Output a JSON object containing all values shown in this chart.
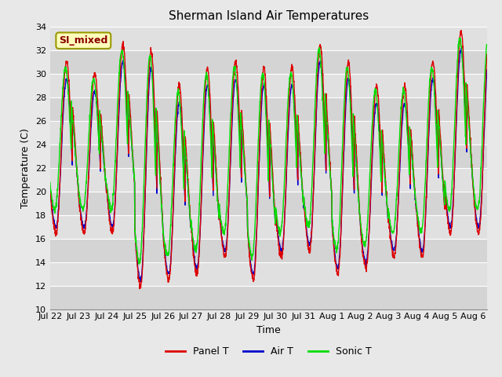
{
  "title": "Sherman Island Air Temperatures",
  "xlabel": "Time",
  "ylabel": "Temperature (C)",
  "ylim": [
    10,
    34
  ],
  "yticks": [
    10,
    12,
    14,
    16,
    18,
    20,
    22,
    24,
    26,
    28,
    30,
    32,
    34
  ],
  "annotation": "SI_mixed",
  "panel_t_color": "#dd0000",
  "air_t_color": "#0000cc",
  "sonic_t_color": "#00dd00",
  "bg_color": "#e8e8e8",
  "legend_labels": [
    "Panel T",
    "Air T",
    "Sonic T"
  ],
  "title_fontsize": 11,
  "axis_label_fontsize": 9,
  "tick_fontsize": 8,
  "num_days": 15.5,
  "points_per_day": 144,
  "daily_peaks": [
    31.0,
    30.0,
    32.5,
    32.0,
    29.0,
    30.5,
    31.0,
    30.5,
    30.5,
    32.5,
    31.0,
    29.0,
    29.0,
    31.0,
    33.5,
    33.5
  ],
  "daily_troughs": [
    16.5,
    16.5,
    16.5,
    12.0,
    12.5,
    13.0,
    14.5,
    12.5,
    14.5,
    15.0,
    13.0,
    13.5,
    14.5,
    14.5,
    16.5,
    16.5
  ],
  "tick_labels": [
    "Jul 22",
    "Jul 23",
    "Jul 24",
    "Jul 25",
    "Jul 26",
    "Jul 27",
    "Jul 28",
    "Jul 29",
    "Jul 30",
    "Jul 31",
    "Aug 1",
    "Aug 2",
    "Aug 3",
    "Aug 4",
    "Aug 5",
    "Aug 6"
  ]
}
